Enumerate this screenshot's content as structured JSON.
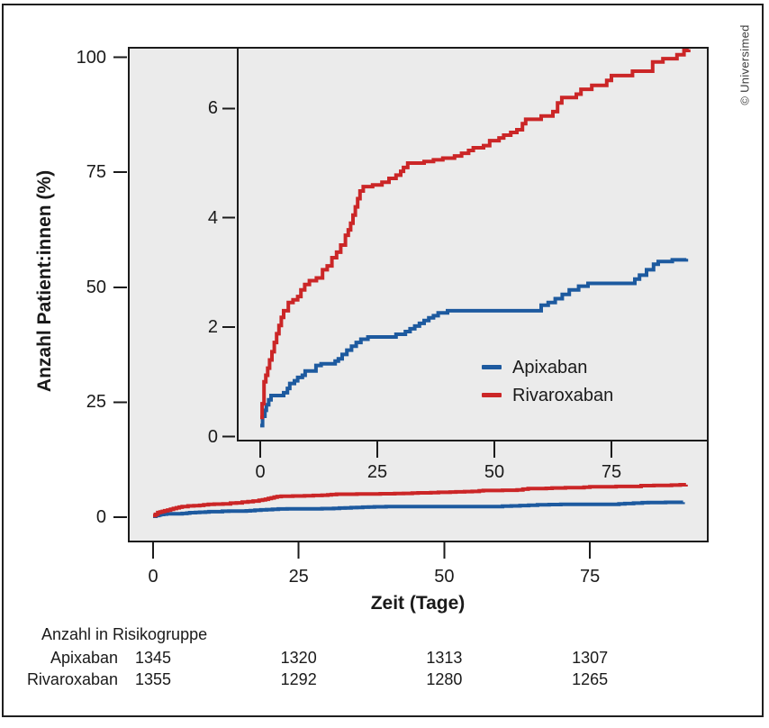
{
  "figure": {
    "copyright": "© Universimed"
  },
  "chart_data": {
    "type": "line",
    "subtype": "cumulative-incidence-step-curves-with-inset",
    "title": "",
    "xlabel": "Zeit (Tage)",
    "ylabel": "Anzahl Patient:innen (%)",
    "panel_background": "#ebebeb",
    "axis_color": "#1b1b1b",
    "main_axis": {
      "x_ticks": [
        0,
        25,
        50,
        75
      ],
      "y_ticks": [
        100,
        75,
        50,
        25,
        0
      ],
      "xlim": [
        0,
        95
      ],
      "ylim": [
        0,
        102
      ],
      "grid": false
    },
    "inset_axis": {
      "x_ticks": [
        0,
        25,
        50,
        75
      ],
      "y_ticks": [
        6,
        4,
        2,
        0
      ],
      "xlim": [
        -5,
        96
      ],
      "ylim": [
        0,
        7.1
      ],
      "grid": false
    },
    "legend": {
      "position": "inset-middle-right",
      "entries": [
        "Apixaban",
        "Rivaroxaban"
      ]
    },
    "series": [
      {
        "name": "Apixaban",
        "color": "#1d5a9f",
        "points": [
          [
            0,
            0.2
          ],
          [
            0.5,
            0.37
          ],
          [
            1,
            0.48
          ],
          [
            1.3,
            0.58
          ],
          [
            1.8,
            0.67
          ],
          [
            2.3,
            0.75
          ],
          [
            5,
            0.8
          ],
          [
            5.8,
            0.88
          ],
          [
            6.3,
            0.97
          ],
          [
            7.3,
            1.02
          ],
          [
            8,
            1.08
          ],
          [
            9,
            1.12
          ],
          [
            9.6,
            1.2
          ],
          [
            11.9,
            1.3
          ],
          [
            13,
            1.33
          ],
          [
            16,
            1.38
          ],
          [
            16.7,
            1.42
          ],
          [
            17.5,
            1.5
          ],
          [
            18.5,
            1.58
          ],
          [
            19.5,
            1.65
          ],
          [
            20.5,
            1.72
          ],
          [
            21.5,
            1.78
          ],
          [
            23,
            1.82
          ],
          [
            29,
            1.87
          ],
          [
            31,
            1.92
          ],
          [
            32,
            1.97
          ],
          [
            33,
            2.02
          ],
          [
            34,
            2.07
          ],
          [
            35,
            2.12
          ],
          [
            36,
            2.17
          ],
          [
            37,
            2.21
          ],
          [
            38,
            2.26
          ],
          [
            40,
            2.3
          ],
          [
            60,
            2.4
          ],
          [
            61.5,
            2.45
          ],
          [
            63,
            2.52
          ],
          [
            64.5,
            2.6
          ],
          [
            66,
            2.68
          ],
          [
            68,
            2.75
          ],
          [
            70,
            2.8
          ],
          [
            80,
            2.88
          ],
          [
            81,
            2.95
          ],
          [
            82.5,
            3.05
          ],
          [
            84,
            3.15
          ],
          [
            85,
            3.2
          ],
          [
            88,
            3.23
          ],
          [
            91,
            3.25
          ]
        ]
      },
      {
        "name": "Rivaroxaban",
        "color": "#cb2627",
        "points": [
          [
            0,
            0.35
          ],
          [
            0.4,
            0.6
          ],
          [
            0.8,
            1.0
          ],
          [
            1.2,
            1.12
          ],
          [
            1.6,
            1.25
          ],
          [
            2,
            1.4
          ],
          [
            2.5,
            1.55
          ],
          [
            3,
            1.72
          ],
          [
            3.5,
            1.88
          ],
          [
            4,
            2.03
          ],
          [
            4.5,
            2.18
          ],
          [
            5,
            2.3
          ],
          [
            6,
            2.45
          ],
          [
            7,
            2.5
          ],
          [
            8,
            2.56
          ],
          [
            8.7,
            2.68
          ],
          [
            9.5,
            2.78
          ],
          [
            10.5,
            2.85
          ],
          [
            12,
            2.9
          ],
          [
            13.3,
            3.05
          ],
          [
            14.3,
            3.12
          ],
          [
            15.3,
            3.27
          ],
          [
            16.3,
            3.37
          ],
          [
            17.2,
            3.5
          ],
          [
            18.2,
            3.68
          ],
          [
            18.8,
            3.78
          ],
          [
            19.3,
            3.9
          ],
          [
            19.8,
            4.05
          ],
          [
            20.3,
            4.2
          ],
          [
            20.8,
            4.35
          ],
          [
            21.3,
            4.49
          ],
          [
            22,
            4.57
          ],
          [
            24,
            4.6
          ],
          [
            26,
            4.65
          ],
          [
            27.5,
            4.72
          ],
          [
            29,
            4.78
          ],
          [
            30,
            4.85
          ],
          [
            30.6,
            4.92
          ],
          [
            31.5,
            5.0
          ],
          [
            35,
            5.03
          ],
          [
            37,
            5.06
          ],
          [
            39,
            5.09
          ],
          [
            41.5,
            5.13
          ],
          [
            43,
            5.18
          ],
          [
            44.5,
            5.23
          ],
          [
            45.5,
            5.28
          ],
          [
            47.7,
            5.32
          ],
          [
            49,
            5.41
          ],
          [
            51,
            5.46
          ],
          [
            52,
            5.51
          ],
          [
            53.5,
            5.56
          ],
          [
            54.8,
            5.61
          ],
          [
            56,
            5.72
          ],
          [
            56.7,
            5.8
          ],
          [
            60,
            5.86
          ],
          [
            62.5,
            5.94
          ],
          [
            63.5,
            6.1
          ],
          [
            64.4,
            6.2
          ],
          [
            67.5,
            6.26
          ],
          [
            68.5,
            6.35
          ],
          [
            70.8,
            6.42
          ],
          [
            74,
            6.51
          ],
          [
            75,
            6.6
          ],
          [
            79.5,
            6.68
          ],
          [
            83.8,
            6.85
          ],
          [
            86,
            6.91
          ],
          [
            89,
            6.98
          ],
          [
            90.5,
            7.06
          ],
          [
            91.5,
            7.08
          ]
        ]
      }
    ],
    "risk_table": {
      "title": "Anzahl in Risikogruppe",
      "time_points": [
        0,
        25,
        50,
        75
      ],
      "rows": [
        {
          "label": "Apixaban",
          "values": [
            "1345",
            "1320",
            "1313",
            "1307"
          ]
        },
        {
          "label": "Rivaroxaban",
          "values": [
            "1355",
            "1292",
            "1280",
            "1265"
          ]
        }
      ]
    }
  }
}
